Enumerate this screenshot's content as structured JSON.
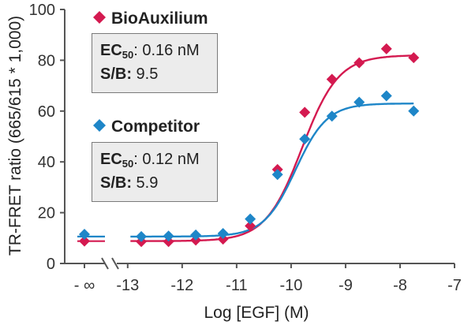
{
  "chart_data": {
    "type": "scatter",
    "xlabel": "Log [EGF] (M)",
    "ylabel": "TR-FRET ratio (665/615 * 1,000)",
    "ylim": [
      0,
      100
    ],
    "xlim": [
      -13.2,
      -7
    ],
    "x_ticks": [
      -13,
      -12,
      -11,
      -10,
      -9,
      -8,
      -7
    ],
    "x_tick_labels": [
      "-13",
      "-12",
      "-11",
      "-10",
      "-9",
      "-8",
      "-7"
    ],
    "x_break_label": "- ∞",
    "y_ticks": [
      0,
      20,
      40,
      60,
      80,
      100
    ],
    "y_tick_labels": [
      "0",
      "20",
      "40",
      "60",
      "80",
      "100"
    ],
    "grid": false,
    "series": [
      {
        "name": "BioAuxilium",
        "color": "#d41a50",
        "marker": "diamond",
        "zero_point": 8.8,
        "x": [
          -12.75,
          -12.25,
          -11.75,
          -11.25,
          -10.75,
          -10.25,
          -9.75,
          -9.25,
          -8.75,
          -8.25,
          -7.75
        ],
        "y": [
          8.6,
          8.6,
          9.2,
          9.6,
          14.8,
          37.0,
          59.5,
          72.5,
          79.0,
          84.5,
          81.0
        ],
        "fit": {
          "bottom": 8.8,
          "top": 82.0,
          "log_ec50": -9.8,
          "hill": 1.3
        },
        "ec50_label": "EC",
        "ec50_sub": "50",
        "ec50_value": ": 0.16 nM",
        "sb_label": "S/B:",
        "sb_value": " 9.5"
      },
      {
        "name": "Competitor",
        "color": "#1e86c8",
        "marker": "diamond",
        "zero_point": 11.5,
        "x": [
          -12.75,
          -12.25,
          -11.75,
          -11.25,
          -10.75,
          -10.25,
          -9.75,
          -9.25,
          -8.75,
          -8.25,
          -7.75
        ],
        "y": [
          10.6,
          10.8,
          11.2,
          11.8,
          17.5,
          35.0,
          49.0,
          58.0,
          63.5,
          66.0,
          60.0
        ],
        "fit": {
          "bottom": 10.6,
          "top": 63.0,
          "log_ec50": -9.92,
          "hill": 1.5
        },
        "ec50_label": "EC",
        "ec50_sub": "50",
        "ec50_value": ": 0.12 nM",
        "sb_label": "S/B:",
        "sb_value": " 5.9"
      }
    ]
  }
}
